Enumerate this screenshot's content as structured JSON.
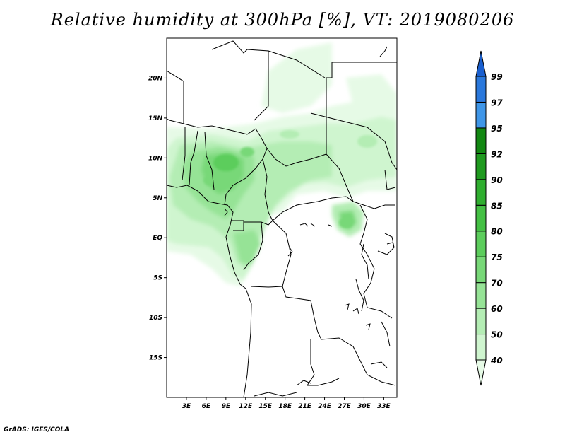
{
  "title": "Relative humidity at 300hPa [%], VT: 2019080206",
  "credit": "GrADS: IGES/COLA",
  "map": {
    "lon_range": [
      0,
      35
    ],
    "lat_range": [
      -20,
      25
    ],
    "lon_ticks": [
      "3E",
      "6E",
      "9E",
      "12E",
      "15E",
      "18E",
      "21E",
      "24E",
      "27E",
      "30E",
      "33E"
    ],
    "lat_ticks": [
      "20N",
      "15N",
      "10N",
      "5N",
      "EQ",
      "5S",
      "10S",
      "15S"
    ]
  },
  "colorbar": {
    "levels": [
      "40",
      "50",
      "60",
      "70",
      "75",
      "80",
      "85",
      "90",
      "92",
      "95",
      "97",
      "99"
    ],
    "colors": [
      "#e6fae6",
      "#cff5cf",
      "#b4edb4",
      "#96e396",
      "#78d878",
      "#5ccd5c",
      "#44c044",
      "#2fae2f",
      "#1f9a1f",
      "#128812",
      "#3f96e8",
      "#2a78dc",
      "#1a5fcf"
    ]
  },
  "chart_data": {
    "type": "heatmap",
    "title": "Relative humidity at 300hPa [%], VT: 2019080206",
    "units": "%",
    "x_axis": "longitude",
    "y_axis": "latitude",
    "xlim": [
      0,
      35
    ],
    "ylim": [
      -20,
      25
    ],
    "contour_levels": [
      40,
      50,
      60,
      70,
      75,
      80,
      85,
      90,
      92,
      95,
      97,
      99
    ]
  }
}
